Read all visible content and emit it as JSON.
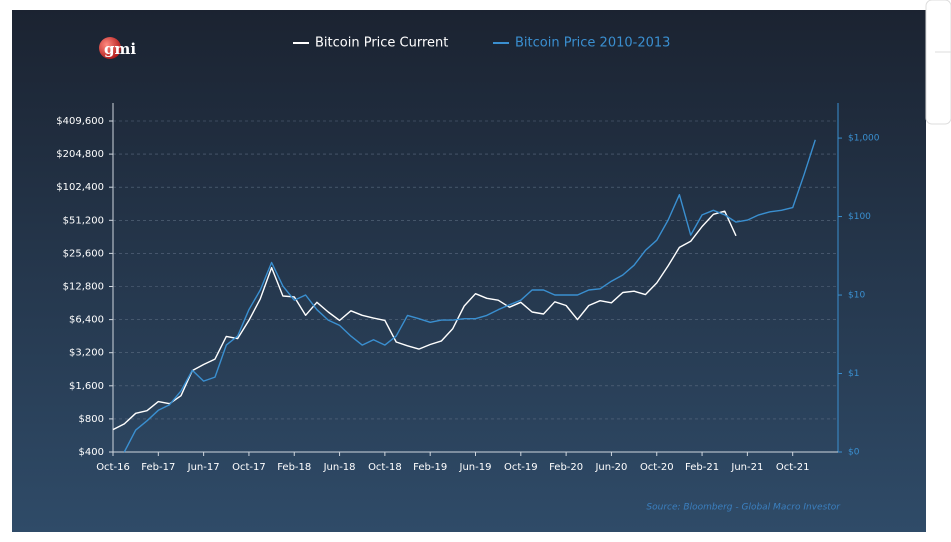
{
  "chart_data": {
    "type": "line",
    "logo": "gmi",
    "source": "Source: Bloomberg - Global Macro Investor",
    "log_scale": true,
    "grid": true,
    "x": [
      "Oct-16",
      "Nov-16",
      "Dec-16",
      "Jan-17",
      "Feb-17",
      "Mar-17",
      "Apr-17",
      "May-17",
      "Jun-17",
      "Jul-17",
      "Aug-17",
      "Sep-17",
      "Oct-17",
      "Nov-17",
      "Dec-17",
      "Jan-18",
      "Feb-18",
      "Mar-18",
      "Apr-18",
      "May-18",
      "Jun-18",
      "Jul-18",
      "Aug-18",
      "Sep-18",
      "Oct-18",
      "Nov-18",
      "Dec-18",
      "Jan-19",
      "Feb-19",
      "Mar-19",
      "Apr-19",
      "May-19",
      "Jun-19",
      "Jul-19",
      "Aug-19",
      "Sep-19",
      "Oct-19",
      "Nov-19",
      "Dec-19",
      "Jan-20",
      "Feb-20",
      "Mar-20",
      "Apr-20",
      "May-20",
      "Jun-20",
      "Jul-20",
      "Aug-20",
      "Sep-20",
      "Oct-20",
      "Nov-20",
      "Dec-20",
      "Jan-21",
      "Feb-21",
      "Mar-21",
      "Apr-21",
      "May-21",
      "Jun-21",
      "Jul-21",
      "Aug-21",
      "Sep-21",
      "Oct-21",
      "Nov-21",
      "Dec-21"
    ],
    "xlim": [
      "Oct-16",
      "Feb-22"
    ],
    "xticks": [
      "Oct-16",
      "Feb-17",
      "Jun-17",
      "Oct-17",
      "Feb-18",
      "Jun-18",
      "Oct-18",
      "Feb-19",
      "Jun-19",
      "Oct-19",
      "Feb-20",
      "Jun-20",
      "Oct-20",
      "Feb-21",
      "Jun-21",
      "Oct-21"
    ],
    "ylim": [
      400,
      409600
    ],
    "yticks": [
      {
        "value": 400,
        "label": "$400"
      },
      {
        "value": 800,
        "label": "$800"
      },
      {
        "value": 1600,
        "label": "$1,600"
      },
      {
        "value": 3200,
        "label": "$3,200"
      },
      {
        "value": 6400,
        "label": "$6,400"
      },
      {
        "value": 12800,
        "label": "$12,800"
      },
      {
        "value": 25600,
        "label": "$25,600"
      },
      {
        "value": 51200,
        "label": "$51,200"
      },
      {
        "value": 102400,
        "label": "$102,400"
      },
      {
        "value": 204800,
        "label": "$204,800"
      },
      {
        "value": 409600,
        "label": "$409,600"
      }
    ],
    "y2lim": [
      0.1,
      1650
    ],
    "y2ticks": [
      {
        "value": 0.1,
        "label": "$0"
      },
      {
        "value": 1,
        "label": "$1"
      },
      {
        "value": 10,
        "label": "$10"
      },
      {
        "value": 100,
        "label": "$100"
      },
      {
        "value": 1000,
        "label": "$1,000"
      }
    ],
    "series": [
      {
        "name": "Bitcoin Price Current",
        "color": "#ffffff",
        "axis": "y",
        "values": [
          640,
          720,
          900,
          950,
          1150,
          1100,
          1300,
          2200,
          2500,
          2800,
          4500,
          4300,
          6300,
          9900,
          19000,
          10500,
          10300,
          7000,
          9200,
          7500,
          6300,
          7700,
          7000,
          6600,
          6300,
          4000,
          3700,
          3450,
          3800,
          4100,
          5300,
          8500,
          11000,
          10000,
          9600,
          8300,
          9200,
          7500,
          7200,
          9300,
          8600,
          6400,
          8600,
          9500,
          9100,
          11300,
          11600,
          10800,
          13800,
          19700,
          29000,
          33000,
          45000,
          58000,
          62000,
          37000,
          null,
          null,
          null,
          null,
          null,
          null,
          null
        ]
      },
      {
        "name": "Bitcoin Price 2010-2013",
        "color": "#3a8fd0",
        "axis": "y2",
        "values": [
          null,
          0.1,
          0.19,
          0.25,
          0.34,
          0.4,
          0.6,
          1.1,
          0.8,
          0.9,
          2.3,
          3,
          6.5,
          11.6,
          26,
          13,
          8.6,
          10,
          6.5,
          4.8,
          4.1,
          3,
          2.3,
          2.7,
          2.3,
          3,
          5.5,
          5,
          4.5,
          4.8,
          4.8,
          5,
          5,
          5.5,
          6.5,
          7.5,
          8.6,
          11.6,
          11.6,
          10,
          10,
          10,
          11.6,
          12,
          15,
          18,
          24,
          37,
          50,
          90,
          190,
          58,
          105,
          120,
          105,
          85,
          90,
          105,
          115,
          120,
          130,
          340,
          950
        ]
      }
    ]
  }
}
